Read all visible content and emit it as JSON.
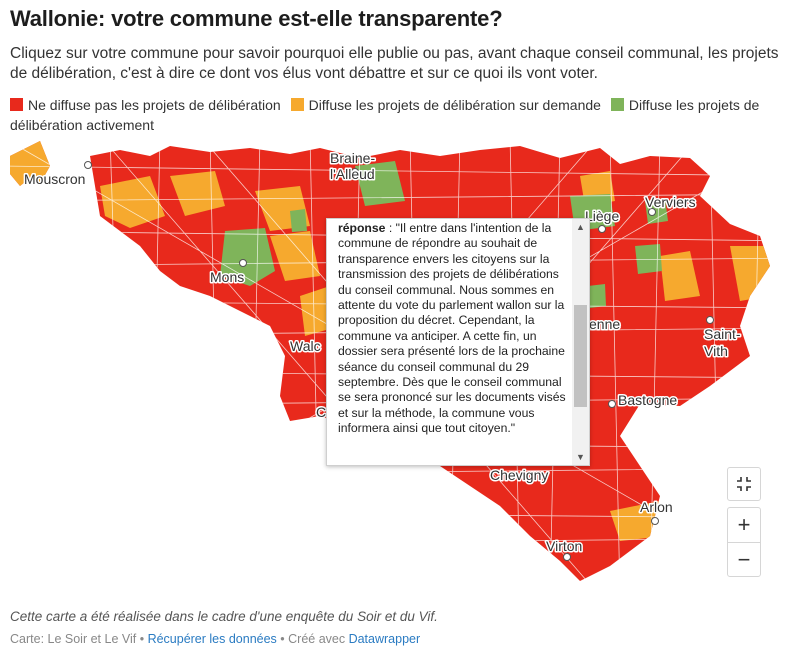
{
  "header": {
    "title": "Wallonie: votre commune est-elle transparente?",
    "subtitle": "Cliquez sur votre commune pour savoir pourquoi elle publie ou pas, avant chaque conseil communal, les projets de délibération, c'est à dire ce dont vos élus vont débattre et sur ce quoi ils vont voter."
  },
  "legend": [
    {
      "label": "Ne diffuse pas les projets de délibération",
      "color": "#e8291c"
    },
    {
      "label": "Diffuse les projets de délibération sur demande",
      "color": "#f6a92e"
    },
    {
      "label": "Diffuse les projets de délibération activement",
      "color": "#7fb45a"
    }
  ],
  "map": {
    "cities": [
      {
        "name": "Mouscron"
      },
      {
        "name": "Braine-l'Alleud"
      },
      {
        "name": "Liège"
      },
      {
        "name": "Verviers"
      },
      {
        "name": "Mons"
      },
      {
        "name": "Walcourt"
      },
      {
        "name": "Saint-Vith"
      },
      {
        "name": "Bastogne"
      },
      {
        "name": "Chevigny"
      },
      {
        "name": "Arlon"
      },
      {
        "name": "Virton"
      }
    ],
    "partial_labels": {
      "braine_line1": "Braine-",
      "braine_line2": "l'Alleud",
      "walcourt": "Walc",
      "marche": "enne",
      "saint_vith_line1": "Saint-",
      "saint_vith_line2": "Vith",
      "hidden_c": "C"
    }
  },
  "tooltip": {
    "field": "réponse",
    "text": ": \"Il entre dans l'intention de la commune de répondre au souhait de transparence envers les citoyens sur la transmission des projets de délibérations du conseil communal. Nous sommes en attente du vote du parlement wallon sur la proposition du décret. Cependant, la commune va anticiper. A cette fin, un dossier sera présenté lors de la prochaine séance du conseil communal du 29 septembre. Dès que le conseil communal se sera prononcé sur les documents visés et sur la méthode, la commune vous informera ainsi que tout citoyen.\""
  },
  "controls": {
    "fullscreen_icon": "fullscreen-exit-icon",
    "zoom_in": "+",
    "zoom_out": "−"
  },
  "footer": {
    "note": "Cette carte a été réalisée dans le cadre d'une enquête du Soir et du Vif.",
    "source_prefix": "Carte: Le Soir et Le Vif",
    "sep1": " • ",
    "data_link": "Récupérer les données",
    "sep2": " • Créé avec ",
    "tool_link": "Datawrapper"
  }
}
